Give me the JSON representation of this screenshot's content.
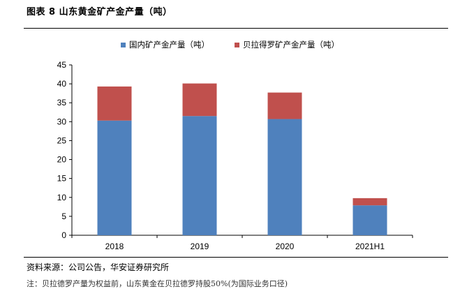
{
  "figure": {
    "title": "图表 8 山东黄金矿产金产量（吨）",
    "source": "资料来源：公司公告，华安证券研究所",
    "note": "注：贝拉德罗产量为权益前，山东黄金在贝拉德罗持股50%(为国际业务口径)"
  },
  "colors": {
    "domestic": "#4f81bd",
    "veladero": "#c0504d"
  },
  "chart_data": {
    "type": "bar",
    "stacked": true,
    "title": "",
    "xlabel": "",
    "ylabel": "",
    "categories": [
      "2018",
      "2019",
      "2020",
      "2021H1"
    ],
    "series": [
      {
        "name": "国内矿产金产量（吨）",
        "values": [
          30.3,
          31.5,
          30.7,
          7.9
        ]
      },
      {
        "name": "贝拉得罗矿产金产量（吨）",
        "values": [
          9.0,
          8.6,
          7.0,
          1.9
        ]
      }
    ],
    "ylim": [
      0,
      45
    ],
    "yticks": [
      0,
      5,
      10,
      15,
      20,
      25,
      30,
      35,
      40,
      45
    ],
    "grid": false,
    "legend_position": "top"
  }
}
